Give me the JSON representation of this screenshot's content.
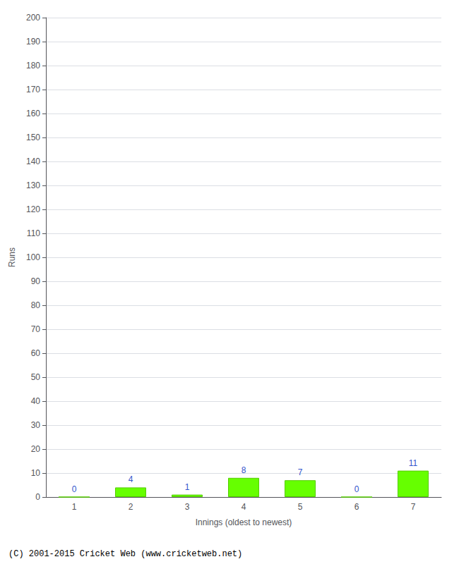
{
  "chart_data": {
    "type": "bar",
    "categories": [
      "1",
      "2",
      "3",
      "4",
      "5",
      "6",
      "7"
    ],
    "values": [
      0,
      4,
      1,
      8,
      7,
      0,
      11
    ],
    "color": "#66ff00",
    "xlabel": "Innings (oldest to newest)",
    "ylabel": "Runs",
    "ylim": [
      0,
      200
    ],
    "yticks": [
      0,
      10,
      20,
      30,
      40,
      50,
      60,
      70,
      80,
      90,
      100,
      110,
      120,
      130,
      140,
      150,
      160,
      170,
      180,
      190,
      200
    ],
    "grid": true,
    "data_labels": true,
    "annotations": [
      "(C) 2001-2015 Cricket Web (www.cricketweb.net)"
    ]
  }
}
